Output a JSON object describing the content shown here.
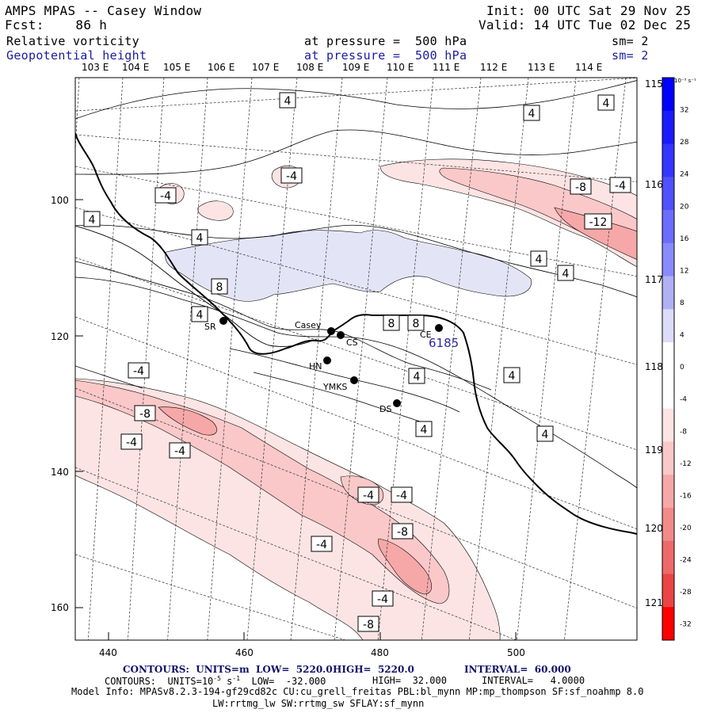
{
  "header": {
    "title": "AMPS MPAS -- Casey Window",
    "fcst": "Fcst:    86 h",
    "init": "Init: 00 UTC Sat 29 Nov 25",
    "valid": "Valid: 14 UTC Tue 02 Dec 25",
    "field1": "Relative vorticity",
    "field1_level": "at pressure =  500 hPa",
    "field1_sm": "sm= 2",
    "field2": "Geopotential height",
    "field2_level": "at pressure =  500 hPa",
    "field2_sm": "sm= 2"
  },
  "axes": {
    "top_lon": [
      "103 E",
      "104 E",
      "105 E",
      "106 E",
      "107 E",
      "108 E",
      "109 E",
      "110 E",
      "111 E",
      "112 E",
      "113 E",
      "114 E"
    ],
    "right_lon": [
      "115 E",
      "116 E",
      "117 E",
      "118 E",
      "119 E",
      "120 E",
      "121 E"
    ],
    "left_y": [
      "100",
      "120",
      "140",
      "160"
    ],
    "bottom_x": [
      "440",
      "460",
      "480",
      "500"
    ]
  },
  "colorbar": {
    "unit": "10⁻⁵ s⁻¹",
    "labels": [
      "32",
      "28",
      "24",
      "20",
      "16",
      "12",
      "8",
      "4",
      "0",
      "-4",
      "-8",
      "-12",
      "-16",
      "-20",
      "-24",
      "-28",
      "-32"
    ],
    "colors": [
      "#0000ff",
      "#1a1aff",
      "#3535ff",
      "#5050ff",
      "#6c6cff",
      "#8a8aff",
      "#b0b0f5",
      "#dcdcf8",
      "#ffffff",
      "#ffffff",
      "#fde4e4",
      "#fac8c8",
      "#f6a8a8",
      "#f28a8a",
      "#ee6a6a",
      "#ea4444",
      "#ff0000"
    ]
  },
  "contour_labels": [
    "4",
    "4",
    "-4",
    "-4",
    "4",
    "4",
    "-4",
    "-8",
    "-4",
    "-12",
    "4",
    "4",
    "4",
    "8",
    "4",
    "8",
    "8",
    "-4",
    "4",
    "4",
    "-8",
    "4",
    "-4",
    "-4",
    "4",
    "-4",
    "-4",
    "-8",
    "-4",
    "-4",
    "-8"
  ],
  "stations": [
    "SR",
    "Casey",
    "CS",
    "HN",
    "YMKS",
    "DS",
    "CE"
  ],
  "station_code": "6185",
  "footer": {
    "line1_a": "CONTOURS:  UNITS=m  LOW=  5220.0",
    "line1_b": "HIGH=  5220.0",
    "line1_c": "INTERVAL=  60.000",
    "line2_a": "CONTOURS:  UNITS=10",
    "line2_b": "-5",
    "line2_c": " s",
    "line2_d": "-1",
    "line2_e": "  LOW=  -32.000",
    "line2_f": "HIGH=  32.000",
    "line2_g": "INTERVAL=   4.0000",
    "model_info": "Model Info: MPASv8.2.3-194-gf29cd82c CU:cu_grell_freitas PBL:bl_mynn MP:mp_thompson SF:sf_noahmp 8.0",
    "model_info2": "LW:rrtmg_lw SW:rrtmg_sw SFLAY:sf_mynn"
  }
}
